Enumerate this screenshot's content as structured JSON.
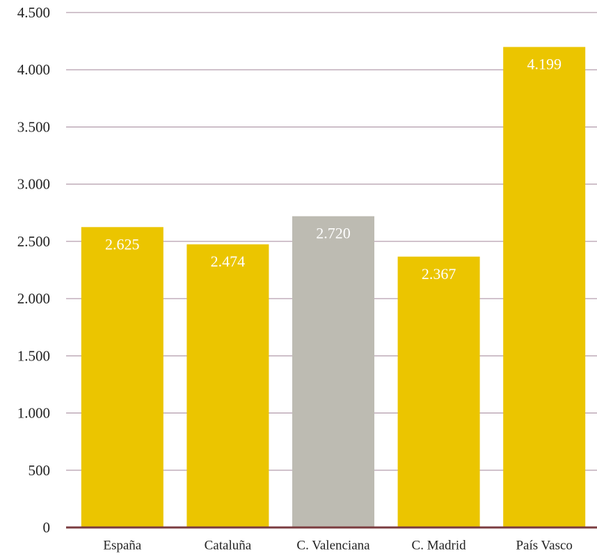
{
  "chart_data": {
    "type": "bar",
    "title": "",
    "xlabel": "",
    "ylabel": "",
    "categories": [
      "España",
      "Cataluña",
      "C. Valenciana",
      "C. Madrid",
      "País Vasco"
    ],
    "values": [
      2625,
      2474,
      2720,
      2367,
      4199
    ],
    "value_labels": [
      "2.625",
      "2.474",
      "2.720",
      "2.367",
      "4.199"
    ],
    "ylim": [
      0,
      4500
    ],
    "yticks": [
      0,
      500,
      1000,
      1500,
      2000,
      2500,
      3000,
      3500,
      4000,
      4500
    ],
    "ytick_labels": [
      "0",
      "500",
      "1.000",
      "1.500",
      "2.000",
      "2.500",
      "3.000",
      "3.500",
      "4.000",
      "4.500"
    ],
    "grid": true,
    "legend": "none",
    "highlight_index": 2
  },
  "colors": {
    "bar": "#EBC500",
    "highlight_bar": "#BDBBB2",
    "gridline": "#A3879A",
    "baseline": "#7A3B3F"
  }
}
